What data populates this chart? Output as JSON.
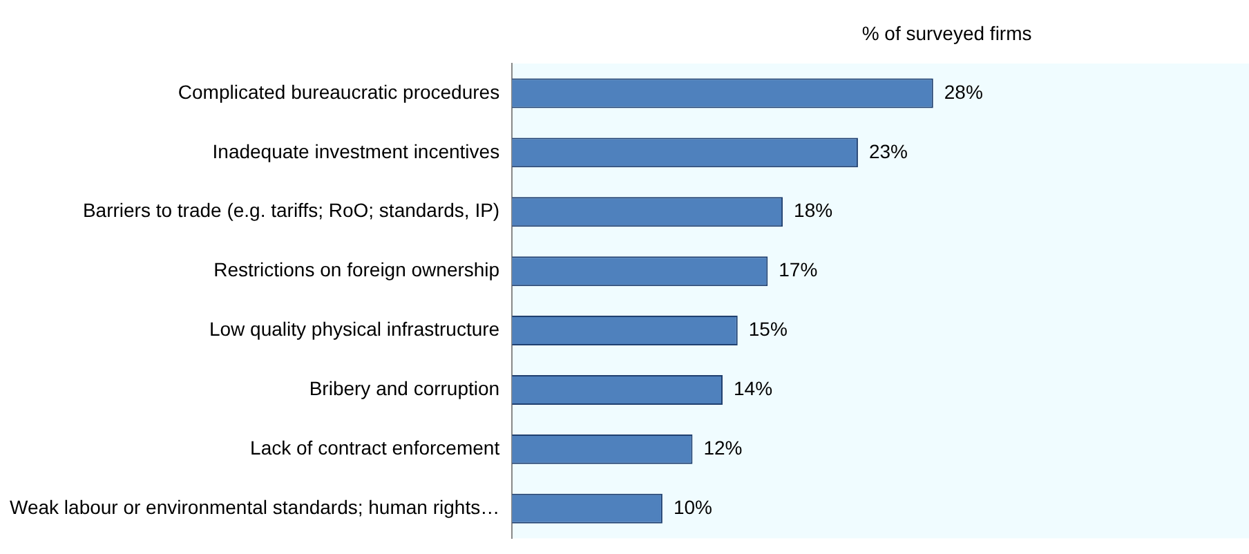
{
  "chart_data": {
    "type": "bar",
    "orientation": "horizontal",
    "title": "% of surveyed firms",
    "categories": [
      "Complicated bureaucratic procedures",
      "Inadequate investment incentives",
      "Barriers to trade (e.g. tariffs; RoO; standards, IP)",
      "Restrictions on foreign ownership",
      "Low quality physical infrastructure",
      "Bribery and corruption",
      "Lack of contract enforcement",
      "Weak labour or environmental standards; human rights…"
    ],
    "values": [
      28,
      23,
      18,
      17,
      15,
      14,
      12,
      10
    ],
    "value_labels": [
      "28%",
      "23%",
      "18%",
      "17%",
      "15%",
      "14%",
      "12%",
      "10%"
    ],
    "color": "#4f81bd",
    "xlim": [
      0,
      49
    ],
    "tick_labels": "y",
    "grid": false,
    "legend": false
  }
}
